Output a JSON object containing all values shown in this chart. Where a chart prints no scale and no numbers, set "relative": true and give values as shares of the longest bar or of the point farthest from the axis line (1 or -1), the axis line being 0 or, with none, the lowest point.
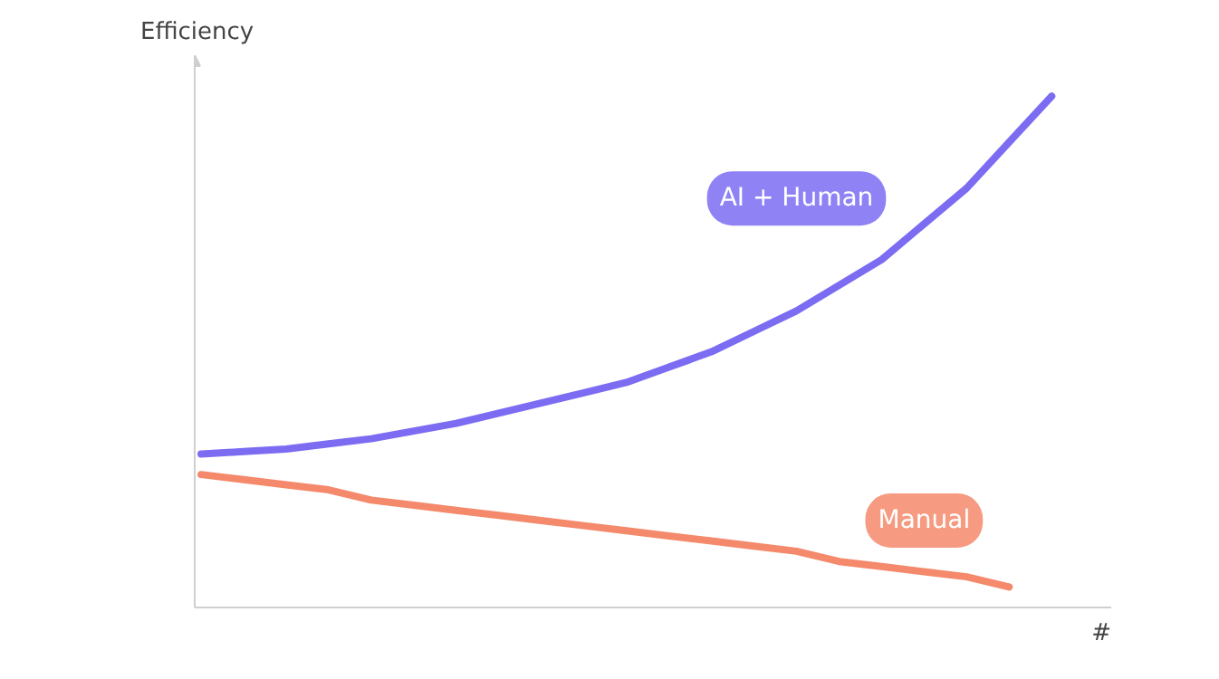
{
  "chart_data": {
    "type": "line",
    "relative": true,
    "xlabel": "#",
    "ylabel": "Efficiency",
    "categories": [
      null,
      null,
      null,
      null,
      null,
      null,
      null,
      null,
      null,
      null,
      null,
      null,
      null,
      null,
      null,
      null,
      null,
      null,
      null,
      null,
      null
    ],
    "series": [
      {
        "name": "AI + Human",
        "color": "#7b6cf2",
        "values": [
          0.3,
          0.305,
          0.31,
          0.32,
          0.33,
          0.345,
          0.36,
          0.38,
          0.4,
          0.42,
          0.44,
          0.47,
          0.5,
          0.54,
          0.58,
          0.63,
          0.68,
          0.75,
          0.82,
          0.91,
          1.0
        ]
      },
      {
        "name": "Manual",
        "color": "#f4896b",
        "values": [
          0.26,
          0.25,
          0.24,
          0.23,
          0.21,
          0.2,
          0.19,
          0.18,
          0.17,
          0.16,
          0.15,
          0.14,
          0.13,
          0.12,
          0.11,
          0.09,
          0.08,
          0.07,
          0.06,
          0.04,
          null
        ]
      }
    ]
  }
}
